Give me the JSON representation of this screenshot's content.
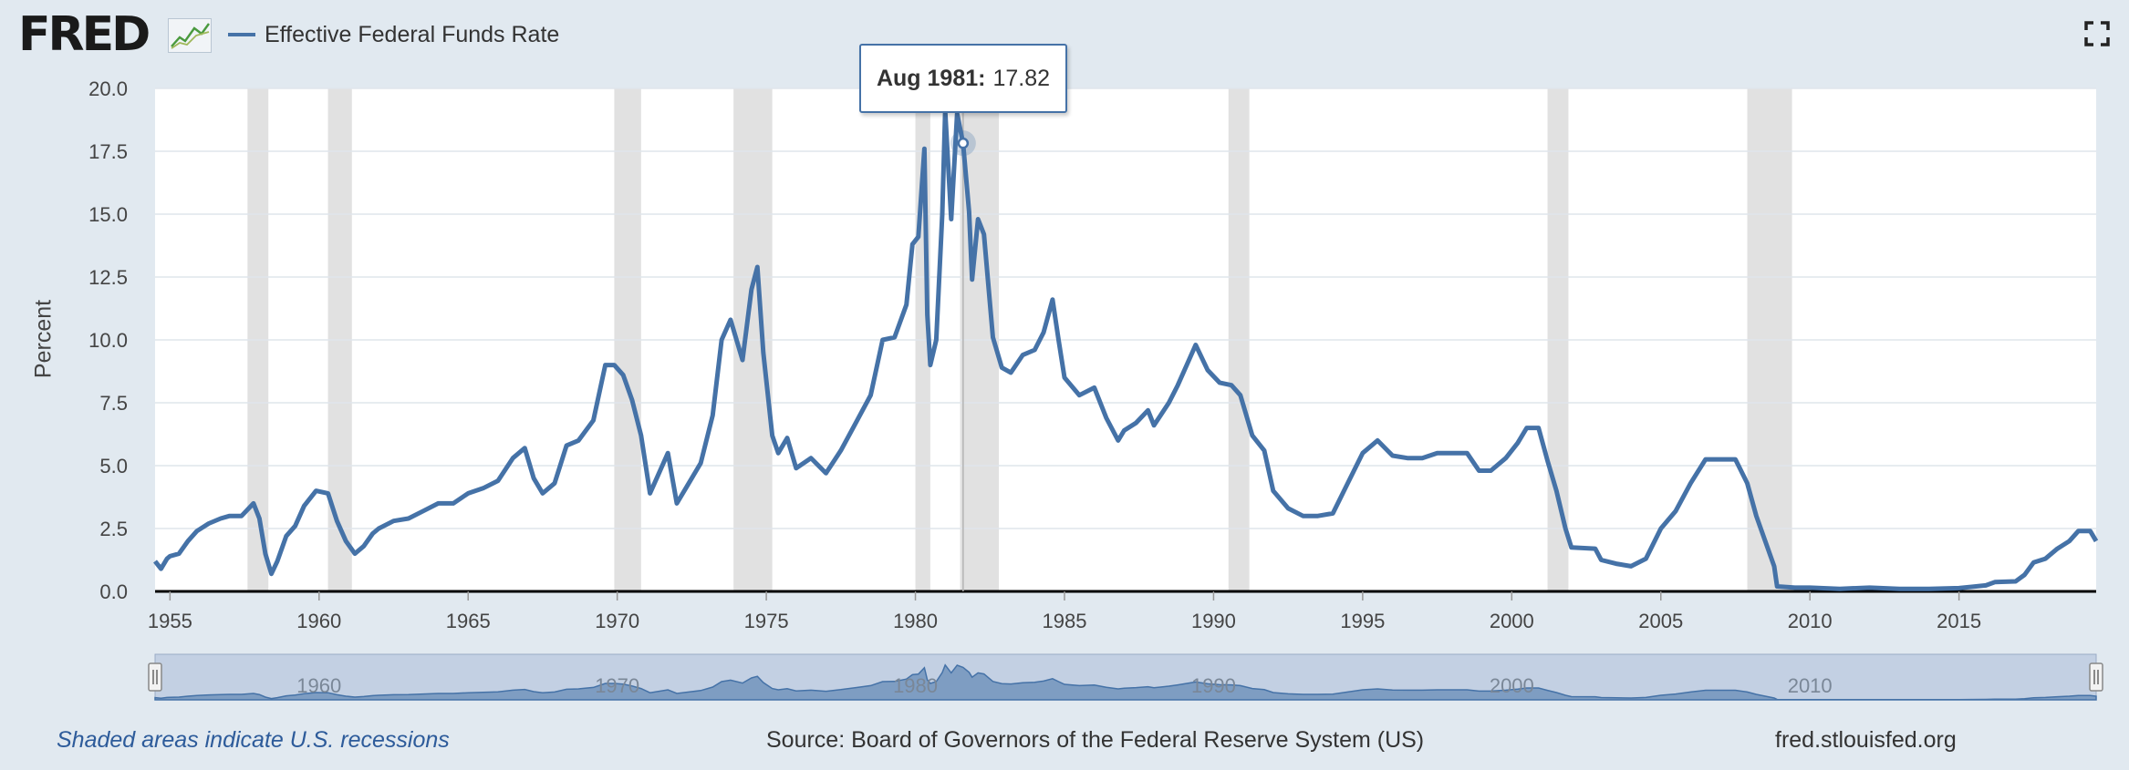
{
  "header": {
    "logo_text": "FRED",
    "legend_label": "Effective Federal Funds Rate"
  },
  "tooltip": {
    "date": "Aug 1981:",
    "value": "17.82"
  },
  "footer": {
    "recession_note": "Shaded areas indicate U.S. recessions",
    "source": "Source: Board of Governors of the Federal Reserve System (US)",
    "site": "fred.stlouisfed.org"
  },
  "icons": {
    "logo": "fred-logo-icon",
    "fullscreen": "fullscreen-icon"
  },
  "colors": {
    "series": "#4572a7",
    "recession": "#e1e1e1",
    "navigator_fill": "#c3d0e3",
    "background": "#e1e9f0"
  },
  "chart_data": {
    "type": "line",
    "title": "",
    "xlabel": "",
    "ylabel": "Percent",
    "xlim": [
      1954.5,
      2019.6
    ],
    "ylim": [
      0,
      20
    ],
    "y_ticks": [
      "0.0",
      "2.5",
      "5.0",
      "7.5",
      "10.0",
      "12.5",
      "15.0",
      "17.5",
      "20.0"
    ],
    "x_ticks": [
      "1955",
      "1960",
      "1965",
      "1970",
      "1975",
      "1980",
      "1985",
      "1990",
      "1995",
      "2000",
      "2005",
      "2010",
      "2015"
    ],
    "navigator_ticks": [
      "1960",
      "1970",
      "1980",
      "1990",
      "2000",
      "2010"
    ],
    "grid": true,
    "legend": "top-left",
    "recessions": [
      [
        1957.6,
        1958.3
      ],
      [
        1960.3,
        1961.1
      ],
      [
        1969.9,
        1970.8
      ],
      [
        1973.9,
        1975.2
      ],
      [
        1980.0,
        1980.5
      ],
      [
        1981.5,
        1982.8
      ],
      [
        1990.5,
        1991.2
      ],
      [
        2001.2,
        2001.9
      ],
      [
        2007.9,
        2009.4
      ]
    ],
    "highlight": {
      "x": 1981.6,
      "y": 17.82,
      "label": "Aug 1981: 17.82"
    },
    "series": [
      {
        "name": "Effective Federal Funds Rate",
        "points": [
          [
            1954.5,
            1.2
          ],
          [
            1954.7,
            0.9
          ],
          [
            1954.9,
            1.3
          ],
          [
            1955.0,
            1.4
          ],
          [
            1955.3,
            1.5
          ],
          [
            1955.6,
            2.0
          ],
          [
            1955.9,
            2.4
          ],
          [
            1956.3,
            2.7
          ],
          [
            1956.7,
            2.9
          ],
          [
            1957.0,
            3.0
          ],
          [
            1957.4,
            3.0
          ],
          [
            1957.8,
            3.5
          ],
          [
            1958.0,
            2.9
          ],
          [
            1958.2,
            1.5
          ],
          [
            1958.4,
            0.7
          ],
          [
            1958.6,
            1.2
          ],
          [
            1958.9,
            2.2
          ],
          [
            1959.2,
            2.6
          ],
          [
            1959.5,
            3.4
          ],
          [
            1959.9,
            4.0
          ],
          [
            1960.3,
            3.9
          ],
          [
            1960.6,
            2.8
          ],
          [
            1960.9,
            2.0
          ],
          [
            1961.2,
            1.5
          ],
          [
            1961.5,
            1.8
          ],
          [
            1961.8,
            2.3
          ],
          [
            1962.0,
            2.5
          ],
          [
            1962.5,
            2.8
          ],
          [
            1963.0,
            2.9
          ],
          [
            1963.5,
            3.2
          ],
          [
            1964.0,
            3.5
          ],
          [
            1964.5,
            3.5
          ],
          [
            1965.0,
            3.9
          ],
          [
            1965.5,
            4.1
          ],
          [
            1966.0,
            4.4
          ],
          [
            1966.5,
            5.3
          ],
          [
            1966.9,
            5.7
          ],
          [
            1967.2,
            4.5
          ],
          [
            1967.5,
            3.9
          ],
          [
            1967.9,
            4.3
          ],
          [
            1968.3,
            5.8
          ],
          [
            1968.7,
            6.0
          ],
          [
            1969.2,
            6.8
          ],
          [
            1969.6,
            9.0
          ],
          [
            1969.9,
            9.0
          ],
          [
            1970.2,
            8.6
          ],
          [
            1970.5,
            7.6
          ],
          [
            1970.8,
            6.2
          ],
          [
            1971.1,
            3.9
          ],
          [
            1971.4,
            4.7
          ],
          [
            1971.7,
            5.5
          ],
          [
            1972.0,
            3.5
          ],
          [
            1972.4,
            4.3
          ],
          [
            1972.8,
            5.1
          ],
          [
            1973.2,
            7.0
          ],
          [
            1973.5,
            10.0
          ],
          [
            1973.8,
            10.8
          ],
          [
            1974.2,
            9.2
          ],
          [
            1974.5,
            12.0
          ],
          [
            1974.7,
            12.9
          ],
          [
            1974.9,
            9.5
          ],
          [
            1975.2,
            6.2
          ],
          [
            1975.4,
            5.5
          ],
          [
            1975.7,
            6.1
          ],
          [
            1976.0,
            4.9
          ],
          [
            1976.5,
            5.3
          ],
          [
            1977.0,
            4.7
          ],
          [
            1977.5,
            5.6
          ],
          [
            1978.0,
            6.7
          ],
          [
            1978.5,
            7.8
          ],
          [
            1978.9,
            10.0
          ],
          [
            1979.3,
            10.1
          ],
          [
            1979.7,
            11.4
          ],
          [
            1979.9,
            13.8
          ],
          [
            1980.1,
            14.1
          ],
          [
            1980.3,
            17.6
          ],
          [
            1980.4,
            11.0
          ],
          [
            1980.5,
            9.0
          ],
          [
            1980.7,
            10.0
          ],
          [
            1980.9,
            15.0
          ],
          [
            1981.0,
            19.1
          ],
          [
            1981.2,
            14.8
          ],
          [
            1981.4,
            19.0
          ],
          [
            1981.6,
            17.82
          ],
          [
            1981.8,
            15.1
          ],
          [
            1981.9,
            12.4
          ],
          [
            1982.1,
            14.8
          ],
          [
            1982.3,
            14.2
          ],
          [
            1982.6,
            10.1
          ],
          [
            1982.9,
            8.9
          ],
          [
            1983.2,
            8.7
          ],
          [
            1983.6,
            9.4
          ],
          [
            1984.0,
            9.6
          ],
          [
            1984.3,
            10.3
          ],
          [
            1984.6,
            11.6
          ],
          [
            1984.8,
            10.0
          ],
          [
            1985.0,
            8.5
          ],
          [
            1985.5,
            7.8
          ],
          [
            1986.0,
            8.1
          ],
          [
            1986.4,
            6.9
          ],
          [
            1986.8,
            6.0
          ],
          [
            1987.0,
            6.4
          ],
          [
            1987.4,
            6.7
          ],
          [
            1987.8,
            7.2
          ],
          [
            1988.0,
            6.6
          ],
          [
            1988.5,
            7.5
          ],
          [
            1988.8,
            8.2
          ],
          [
            1989.1,
            9.0
          ],
          [
            1989.4,
            9.8
          ],
          [
            1989.8,
            8.8
          ],
          [
            1990.2,
            8.3
          ],
          [
            1990.6,
            8.2
          ],
          [
            1990.9,
            7.8
          ],
          [
            1991.3,
            6.2
          ],
          [
            1991.7,
            5.6
          ],
          [
            1992.0,
            4.0
          ],
          [
            1992.5,
            3.3
          ],
          [
            1993.0,
            3.0
          ],
          [
            1993.5,
            3.0
          ],
          [
            1994.0,
            3.1
          ],
          [
            1994.5,
            4.3
          ],
          [
            1995.0,
            5.5
          ],
          [
            1995.5,
            6.0
          ],
          [
            1996.0,
            5.4
          ],
          [
            1996.5,
            5.3
          ],
          [
            1997.0,
            5.3
          ],
          [
            1997.5,
            5.5
          ],
          [
            1998.0,
            5.5
          ],
          [
            1998.5,
            5.5
          ],
          [
            1998.9,
            4.8
          ],
          [
            1999.3,
            4.8
          ],
          [
            1999.8,
            5.3
          ],
          [
            2000.2,
            5.9
          ],
          [
            2000.5,
            6.5
          ],
          [
            2000.9,
            6.5
          ],
          [
            2001.2,
            5.2
          ],
          [
            2001.5,
            4.0
          ],
          [
            2001.8,
            2.5
          ],
          [
            2002.0,
            1.75
          ],
          [
            2002.8,
            1.7
          ],
          [
            2003.0,
            1.25
          ],
          [
            2003.5,
            1.1
          ],
          [
            2004.0,
            1.0
          ],
          [
            2004.5,
            1.3
          ],
          [
            2005.0,
            2.5
          ],
          [
            2005.5,
            3.2
          ],
          [
            2006.0,
            4.3
          ],
          [
            2006.5,
            5.25
          ],
          [
            2007.0,
            5.25
          ],
          [
            2007.5,
            5.25
          ],
          [
            2007.9,
            4.3
          ],
          [
            2008.2,
            3.0
          ],
          [
            2008.5,
            2.0
          ],
          [
            2008.8,
            1.0
          ],
          [
            2008.9,
            0.2
          ],
          [
            2009.5,
            0.15
          ],
          [
            2010.0,
            0.15
          ],
          [
            2011.0,
            0.1
          ],
          [
            2012.0,
            0.15
          ],
          [
            2013.0,
            0.1
          ],
          [
            2014.0,
            0.1
          ],
          [
            2015.0,
            0.13
          ],
          [
            2015.9,
            0.24
          ],
          [
            2016.2,
            0.37
          ],
          [
            2016.9,
            0.4
          ],
          [
            2017.2,
            0.66
          ],
          [
            2017.5,
            1.15
          ],
          [
            2017.9,
            1.3
          ],
          [
            2018.3,
            1.7
          ],
          [
            2018.7,
            2.0
          ],
          [
            2019.0,
            2.4
          ],
          [
            2019.4,
            2.4
          ],
          [
            2019.6,
            2.0
          ]
        ]
      }
    ]
  }
}
